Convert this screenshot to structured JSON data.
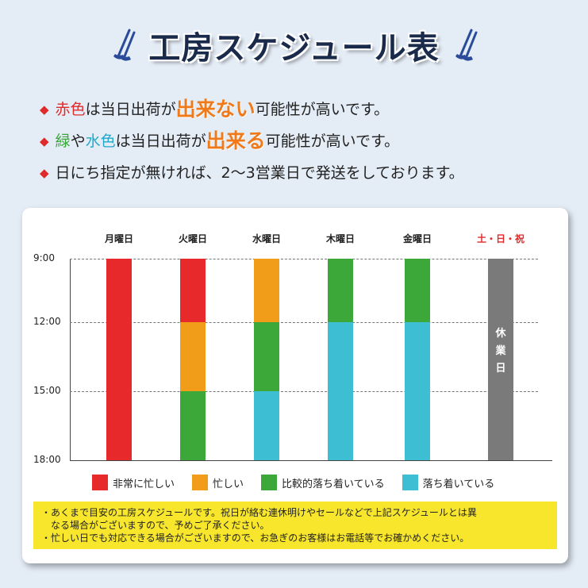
{
  "title": "工房スケジュール表",
  "notes": [
    {
      "parts": [
        {
          "text": "赤色",
          "style": "red"
        },
        {
          "text": "は当日出荷が",
          "style": ""
        },
        {
          "text": "出来ない",
          "style": "emph"
        },
        {
          "text": "可能性が高いです。",
          "style": ""
        }
      ]
    },
    {
      "parts": [
        {
          "text": "緑",
          "style": "green"
        },
        {
          "text": "や",
          "style": ""
        },
        {
          "text": "水色",
          "style": "cyan"
        },
        {
          "text": "は当日出荷が",
          "style": ""
        },
        {
          "text": "出来る",
          "style": "emph"
        },
        {
          "text": "可能性が高いです。",
          "style": ""
        }
      ]
    },
    {
      "parts": [
        {
          "text": "日にち指定が無ければ、2〜3営業日で発送をしております。",
          "style": ""
        }
      ]
    }
  ],
  "chart_data": {
    "type": "bar",
    "title": "",
    "categories": [
      "月曜日",
      "火曜日",
      "水曜日",
      "木曜日",
      "金曜日",
      "土・日・祝"
    ],
    "time_ticks": [
      "9:00",
      "12:00",
      "15:00",
      "18:00"
    ],
    "ylim": [
      "9:00",
      "18:00"
    ],
    "grid": true,
    "status_colors": {
      "very_busy": "#e8292b",
      "busy": "#f29d1a",
      "fairly_calm": "#3da83a",
      "calm": "#3dbed3",
      "closed": "#7a7a7a"
    },
    "schedule": [
      {
        "day": "月曜日",
        "blocks": [
          {
            "from": "9:00",
            "to": "18:00",
            "status": "very_busy"
          }
        ]
      },
      {
        "day": "火曜日",
        "blocks": [
          {
            "from": "9:00",
            "to": "12:00",
            "status": "very_busy"
          },
          {
            "from": "12:00",
            "to": "15:00",
            "status": "busy"
          },
          {
            "from": "15:00",
            "to": "18:00",
            "status": "fairly_calm"
          }
        ]
      },
      {
        "day": "水曜日",
        "blocks": [
          {
            "from": "9:00",
            "to": "12:00",
            "status": "busy"
          },
          {
            "from": "12:00",
            "to": "15:00",
            "status": "fairly_calm"
          },
          {
            "from": "15:00",
            "to": "18:00",
            "status": "calm"
          }
        ]
      },
      {
        "day": "木曜日",
        "blocks": [
          {
            "from": "9:00",
            "to": "12:00",
            "status": "fairly_calm"
          },
          {
            "from": "12:00",
            "to": "18:00",
            "status": "calm"
          }
        ]
      },
      {
        "day": "金曜日",
        "blocks": [
          {
            "from": "9:00",
            "to": "12:00",
            "status": "fairly_calm"
          },
          {
            "from": "12:00",
            "to": "18:00",
            "status": "calm"
          }
        ]
      },
      {
        "day": "土・日・祝",
        "blocks": [
          {
            "from": "9:00",
            "to": "18:00",
            "status": "closed"
          }
        ],
        "label": [
          "休",
          "業",
          "日"
        ]
      }
    ],
    "legend_placement": "bottom",
    "legend": [
      {
        "status": "very_busy",
        "label": "非常に忙しい"
      },
      {
        "status": "busy",
        "label": "忙しい"
      },
      {
        "status": "fairly_calm",
        "label": "比較的落ち着いている"
      },
      {
        "status": "calm",
        "label": "落ち着いている"
      }
    ],
    "weekend_label_color": "#e02a2a"
  },
  "footnotes": [
    "・あくまで目安の工房スケジュールです。祝日が絡む連休明けやセールなどで上記スケジュールとは異",
    "　なる場合がございますので、予めご了承ください。",
    "・忙しい日でも対応できる場合がございますので、お急ぎのお客様はお電話等でお確かめください。"
  ],
  "icons": {
    "title_left": "golf-club-icon",
    "title_right": "golf-club-icon"
  }
}
